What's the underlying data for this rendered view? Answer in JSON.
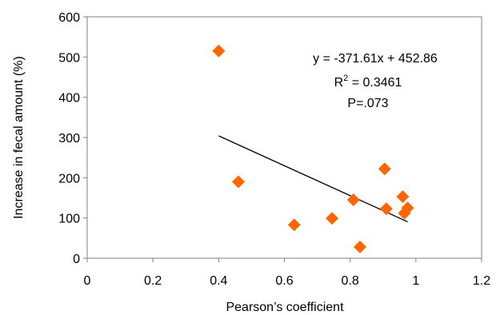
{
  "chart_data": {
    "type": "scatter",
    "xlabel": "Pearson’s coefficient",
    "ylabel": "Increase in fecal amount (%)",
    "xlim": [
      0,
      1.2
    ],
    "ylim": [
      0,
      600
    ],
    "x_ticks": [
      "0",
      "0.2",
      "0.4",
      "0.6",
      "0.8",
      "1",
      "1.2"
    ],
    "y_ticks": [
      "0",
      "100",
      "200",
      "300",
      "400",
      "500",
      "600"
    ],
    "grid": false,
    "legend": "none",
    "marker": "diamond",
    "marker_color": "#ff6600",
    "points": [
      {
        "x": 0.4,
        "y": 515
      },
      {
        "x": 0.46,
        "y": 190
      },
      {
        "x": 0.63,
        "y": 83
      },
      {
        "x": 0.745,
        "y": 99
      },
      {
        "x": 0.81,
        "y": 145
      },
      {
        "x": 0.83,
        "y": 28
      },
      {
        "x": 0.905,
        "y": 222
      },
      {
        "x": 0.91,
        "y": 123
      },
      {
        "x": 0.96,
        "y": 153
      },
      {
        "x": 0.965,
        "y": 112
      },
      {
        "x": 0.975,
        "y": 125
      }
    ],
    "trendline": {
      "slope": -371.61,
      "intercept": 452.86,
      "x_range": [
        0.4,
        0.975
      ]
    },
    "annotations": {
      "equation": "y = -371.61x + 452.86",
      "r2_prefix": "R",
      "r2_sup": "2",
      "r2_suffix": " = 0.3461",
      "p_value": "P=.073"
    }
  }
}
